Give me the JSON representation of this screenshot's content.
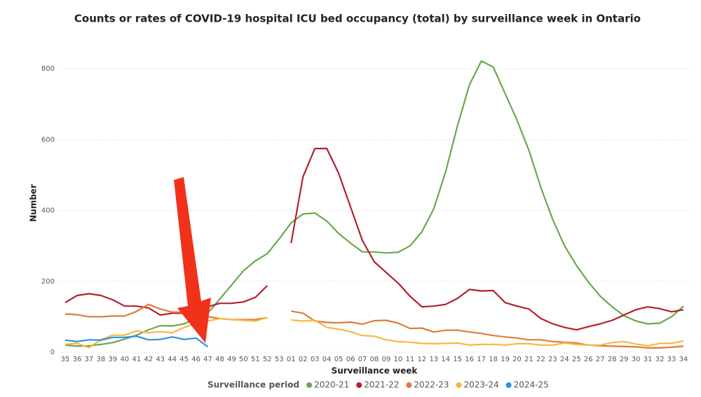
{
  "chart_data": {
    "type": "line",
    "title": "Counts or rates of COVID-19 hospital ICU bed occupancy (total) by surveillance week in Ontario",
    "x_label": "Surveillance week",
    "y_label": "Number",
    "legend_title": "Surveillance period",
    "categories": [
      "35",
      "36",
      "37",
      "38",
      "39",
      "40",
      "41",
      "42",
      "43",
      "44",
      "45",
      "46",
      "47",
      "48",
      "49",
      "50",
      "51",
      "52",
      "53",
      "01",
      "02",
      "03",
      "04",
      "05",
      "06",
      "07",
      "08",
      "09",
      "10",
      "11",
      "12",
      "13",
      "14",
      "15",
      "16",
      "17",
      "18",
      "19",
      "20",
      "21",
      "22",
      "23",
      "24",
      "25",
      "26",
      "27",
      "28",
      "29",
      "30",
      "31",
      "32",
      "33",
      "34"
    ],
    "ylim": [
      0,
      840
    ],
    "yticks": [
      0,
      200,
      400,
      600,
      800
    ],
    "grid": true,
    "legend": "bottom",
    "series": [
      {
        "name": "2020-21",
        "color": "#6aa84f",
        "values": [
          20,
          17,
          18,
          22,
          27,
          37,
          48,
          63,
          75,
          74,
          80,
          95,
          110,
          150,
          190,
          230,
          258,
          278,
          320,
          365,
          390,
          393,
          370,
          335,
          308,
          283,
          283,
          280,
          282,
          300,
          340,
          405,
          510,
          640,
          755,
          822,
          805,
          730,
          655,
          570,
          465,
          375,
          300,
          245,
          198,
          158,
          128,
          103,
          88,
          80,
          82,
          100,
          130
        ]
      },
      {
        "name": "2021-22",
        "color": "#b22030",
        "values": [
          140,
          160,
          165,
          160,
          148,
          130,
          130,
          125,
          105,
          110,
          110,
          120,
          128,
          138,
          138,
          142,
          155,
          188,
          null,
          308,
          495,
          575,
          575,
          505,
          410,
          315,
          255,
          225,
          195,
          158,
          128,
          130,
          135,
          152,
          177,
          173,
          174,
          140,
          130,
          122,
          95,
          80,
          70,
          63,
          72,
          80,
          90,
          105,
          120,
          128,
          123,
          114,
          120
        ]
      },
      {
        "name": "2022-23",
        "color": "#e07b39",
        "values": [
          108,
          106,
          100,
          100,
          102,
          102,
          115,
          135,
          122,
          113,
          113,
          110,
          100,
          95,
          92,
          92,
          92,
          98,
          null,
          116,
          110,
          88,
          84,
          83,
          85,
          79,
          89,
          90,
          82,
          67,
          68,
          57,
          62,
          62,
          57,
          53,
          47,
          43,
          40,
          35,
          35,
          30,
          28,
          26,
          20,
          18,
          17,
          16,
          15,
          12,
          12,
          14,
          17
        ]
      },
      {
        "name": "2023-24",
        "color": "#f6b840",
        "values": [
          22,
          25,
          13,
          35,
          48,
          48,
          60,
          55,
          58,
          55,
          70,
          80,
          88,
          95,
          92,
          90,
          88,
          98,
          null,
          91,
          88,
          90,
          70,
          65,
          58,
          47,
          45,
          35,
          30,
          28,
          25,
          24,
          25,
          26,
          20,
          22,
          22,
          20,
          24,
          24,
          20,
          20,
          26,
          22,
          20,
          20,
          27,
          30,
          23,
          18,
          25,
          25,
          32
        ]
      },
      {
        "name": "2024-25",
        "color": "#2e8ee0",
        "values": [
          34,
          30,
          35,
          34,
          42,
          42,
          45,
          35,
          36,
          43,
          36,
          40,
          15,
          null,
          null,
          null,
          null,
          null,
          null,
          null,
          null,
          null,
          null,
          null,
          null,
          null,
          null,
          null,
          null,
          null,
          null,
          null,
          null,
          null,
          null,
          null,
          null,
          null,
          null,
          null,
          null,
          null,
          null,
          null,
          null,
          null,
          null,
          null,
          null,
          null,
          null,
          null,
          null
        ]
      }
    ]
  }
}
